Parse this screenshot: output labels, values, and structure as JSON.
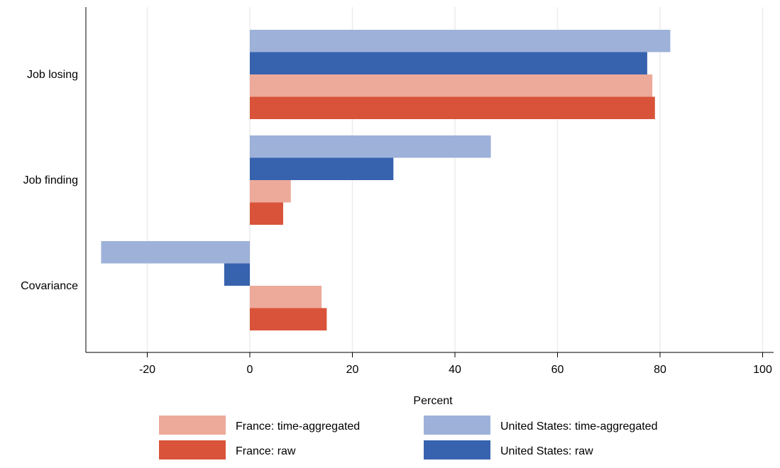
{
  "chart_data": {
    "type": "bar",
    "orientation": "horizontal",
    "title": "",
    "xlabel": "Percent",
    "ylabel": "",
    "xlim": [
      -32,
      100
    ],
    "xticks": [
      -20,
      0,
      20,
      40,
      60,
      80,
      100
    ],
    "grid": true,
    "legend_position": "bottom",
    "categories": [
      "Job losing",
      "Job finding",
      "Covariance"
    ],
    "series": [
      {
        "name": "United States: time-aggregated",
        "color": "#9db1d9",
        "values": [
          82,
          47,
          -29
        ]
      },
      {
        "name": "United States: raw",
        "color": "#3762ae",
        "values": [
          77.5,
          28,
          -5
        ]
      },
      {
        "name": "France: time-aggregated",
        "color": "#edaa9a",
        "values": [
          78.5,
          8,
          14
        ]
      },
      {
        "name": "France: raw",
        "color": "#d9533a",
        "values": [
          79,
          6.5,
          15
        ]
      }
    ],
    "legend": [
      {
        "label": "France: time-aggregated",
        "color": "#edaa9a"
      },
      {
        "label": "United States: time-aggregated",
        "color": "#9db1d9"
      },
      {
        "label": "France: raw",
        "color": "#d9533a"
      },
      {
        "label": "United States: raw",
        "color": "#3762ae"
      }
    ]
  }
}
